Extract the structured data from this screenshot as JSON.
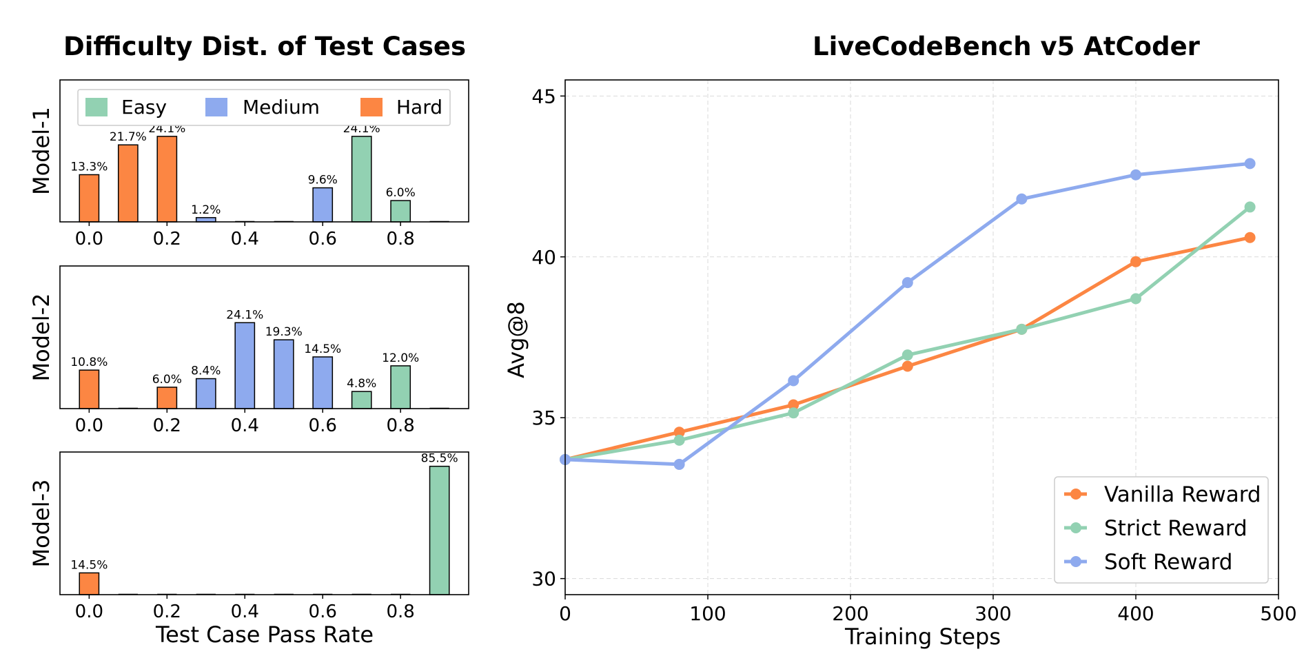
{
  "colors": {
    "easy": "#92d1b2",
    "medium": "#8eaaee",
    "hard": "#fc8643",
    "vanilla": "#fc8643",
    "strict": "#92d1b2",
    "soft": "#8eaaee"
  },
  "left": {
    "title": "Difficulty Dist. of Test Cases",
    "legend": [
      {
        "label": "Easy",
        "key": "easy"
      },
      {
        "label": "Medium",
        "key": "medium"
      },
      {
        "label": "Hard",
        "key": "hard"
      }
    ],
    "xlabel": "Test Case Pass Rate",
    "xticks": [
      "0.0",
      "0.2",
      "0.4",
      "0.6",
      "0.8"
    ]
  },
  "right": {
    "title": "LiveCodeBench v5 AtCoder",
    "xlabel": "Training Steps",
    "ylabel": "Avg@8",
    "xticks": [
      "0",
      "100",
      "200",
      "300",
      "400",
      "500"
    ],
    "yticks": [
      "30",
      "35",
      "40",
      "45"
    ]
  },
  "chart_data": [
    {
      "type": "bar",
      "title": "Model-1",
      "ylabel": "Model-1",
      "xlabel": "",
      "x": [
        0.0,
        0.1,
        0.2,
        0.3,
        0.4,
        0.5,
        0.6,
        0.7,
        0.8,
        0.9
      ],
      "values": [
        13.3,
        21.7,
        24.1,
        1.2,
        0,
        0,
        9.6,
        24.1,
        6.0,
        0
      ],
      "labels": [
        "13.3%",
        "21.7%",
        "24.1%",
        "1.2%",
        "",
        "",
        "9.6%",
        "24.1%",
        "6.0%",
        ""
      ],
      "difficulty": [
        "hard",
        "hard",
        "hard",
        "medium",
        "medium",
        "medium",
        "medium",
        "easy",
        "easy",
        "easy"
      ],
      "ylim": [
        0,
        40
      ],
      "xlim": [
        -0.075,
        0.975
      ]
    },
    {
      "type": "bar",
      "title": "Model-2",
      "ylabel": "Model-2",
      "xlabel": "",
      "x": [
        0.0,
        0.1,
        0.2,
        0.3,
        0.4,
        0.5,
        0.6,
        0.7,
        0.8,
        0.9
      ],
      "values": [
        10.8,
        0,
        6.0,
        8.4,
        24.1,
        19.3,
        14.5,
        4.8,
        12.0,
        0
      ],
      "labels": [
        "10.8%",
        "",
        "6.0%",
        "8.4%",
        "24.1%",
        "19.3%",
        "14.5%",
        "4.8%",
        "12.0%",
        ""
      ],
      "difficulty": [
        "hard",
        "hard",
        "hard",
        "medium",
        "medium",
        "medium",
        "medium",
        "easy",
        "easy",
        "easy"
      ],
      "ylim": [
        0,
        40
      ],
      "xlim": [
        -0.075,
        0.975
      ]
    },
    {
      "type": "bar",
      "title": "Model-3",
      "ylabel": "Model-3",
      "xlabel": "Test Case Pass Rate",
      "x": [
        0.0,
        0.1,
        0.2,
        0.3,
        0.4,
        0.5,
        0.6,
        0.7,
        0.8,
        0.9
      ],
      "values": [
        14.5,
        0,
        0,
        0,
        0,
        0,
        0,
        0,
        0,
        85.5
      ],
      "labels": [
        "14.5%",
        "",
        "",
        "",
        "",
        "",
        "",
        "",
        "",
        "85.5%"
      ],
      "difficulty": [
        "hard",
        "hard",
        "hard",
        "medium",
        "medium",
        "medium",
        "medium",
        "easy",
        "easy",
        "easy"
      ],
      "ylim": [
        0,
        95
      ],
      "xlim": [
        -0.075,
        0.975
      ]
    },
    {
      "type": "line",
      "title": "LiveCodeBench v5 AtCoder",
      "xlabel": "Training Steps",
      "ylabel": "Avg@8",
      "x": [
        0,
        80,
        160,
        240,
        320,
        400,
        480
      ],
      "xlim": [
        0,
        500
      ],
      "ylim": [
        29.5,
        45.5
      ],
      "grid": true,
      "legend_position": "lower-right",
      "series": [
        {
          "name": "Vanilla Reward",
          "key": "vanilla",
          "values": [
            33.7,
            34.55,
            35.4,
            36.6,
            37.75,
            39.85,
            40.6
          ]
        },
        {
          "name": "Strict Reward",
          "key": "strict",
          "values": [
            33.7,
            34.3,
            35.15,
            36.95,
            37.75,
            38.7,
            41.55
          ]
        },
        {
          "name": "Soft Reward",
          "key": "soft",
          "values": [
            33.7,
            33.55,
            36.15,
            39.2,
            41.8,
            42.55,
            42.9
          ]
        }
      ]
    }
  ]
}
